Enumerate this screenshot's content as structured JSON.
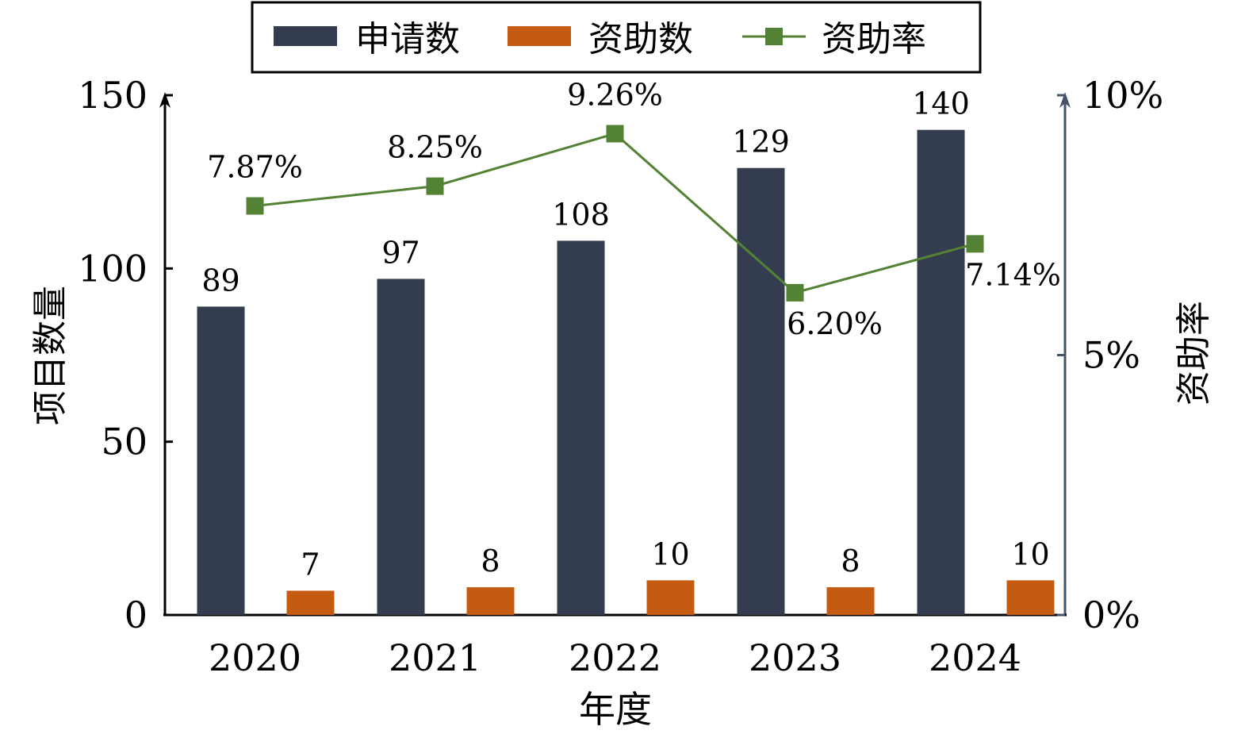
{
  "chart_data": {
    "type": "bar",
    "title": "",
    "categories": [
      "2020",
      "2021",
      "2022",
      "2023",
      "2024"
    ],
    "xlabel": "年度",
    "ylabel": "项目数量",
    "y2label": "资助率",
    "ylim": [
      0,
      150
    ],
    "y2lim": [
      0,
      10
    ],
    "yticks": [
      "0",
      "50",
      "100",
      "150"
    ],
    "y2ticks": [
      "0%",
      "5%",
      "10%"
    ],
    "legend_position": "top-center",
    "grid": false,
    "series": [
      {
        "name": "申请数",
        "kind": "bar",
        "axis": "left",
        "color": "#333d4f",
        "values": [
          89,
          97,
          108,
          129,
          140
        ],
        "labels": [
          "89",
          "97",
          "108",
          "129",
          "140"
        ]
      },
      {
        "name": "资助数",
        "kind": "bar",
        "axis": "left",
        "color": "#c55a11",
        "values": [
          7,
          8,
          10,
          8,
          10
        ],
        "labels": [
          "7",
          "8",
          "10",
          "8",
          "10"
        ]
      },
      {
        "name": "资助率",
        "kind": "line",
        "axis": "right",
        "marker": "square",
        "color": "#548235",
        "values": [
          7.87,
          8.25,
          9.26,
          6.2,
          7.14
        ],
        "labels": [
          "7.87%",
          "8.25%",
          "9.26%",
          "6.20%",
          "7.14%"
        ]
      }
    ]
  }
}
